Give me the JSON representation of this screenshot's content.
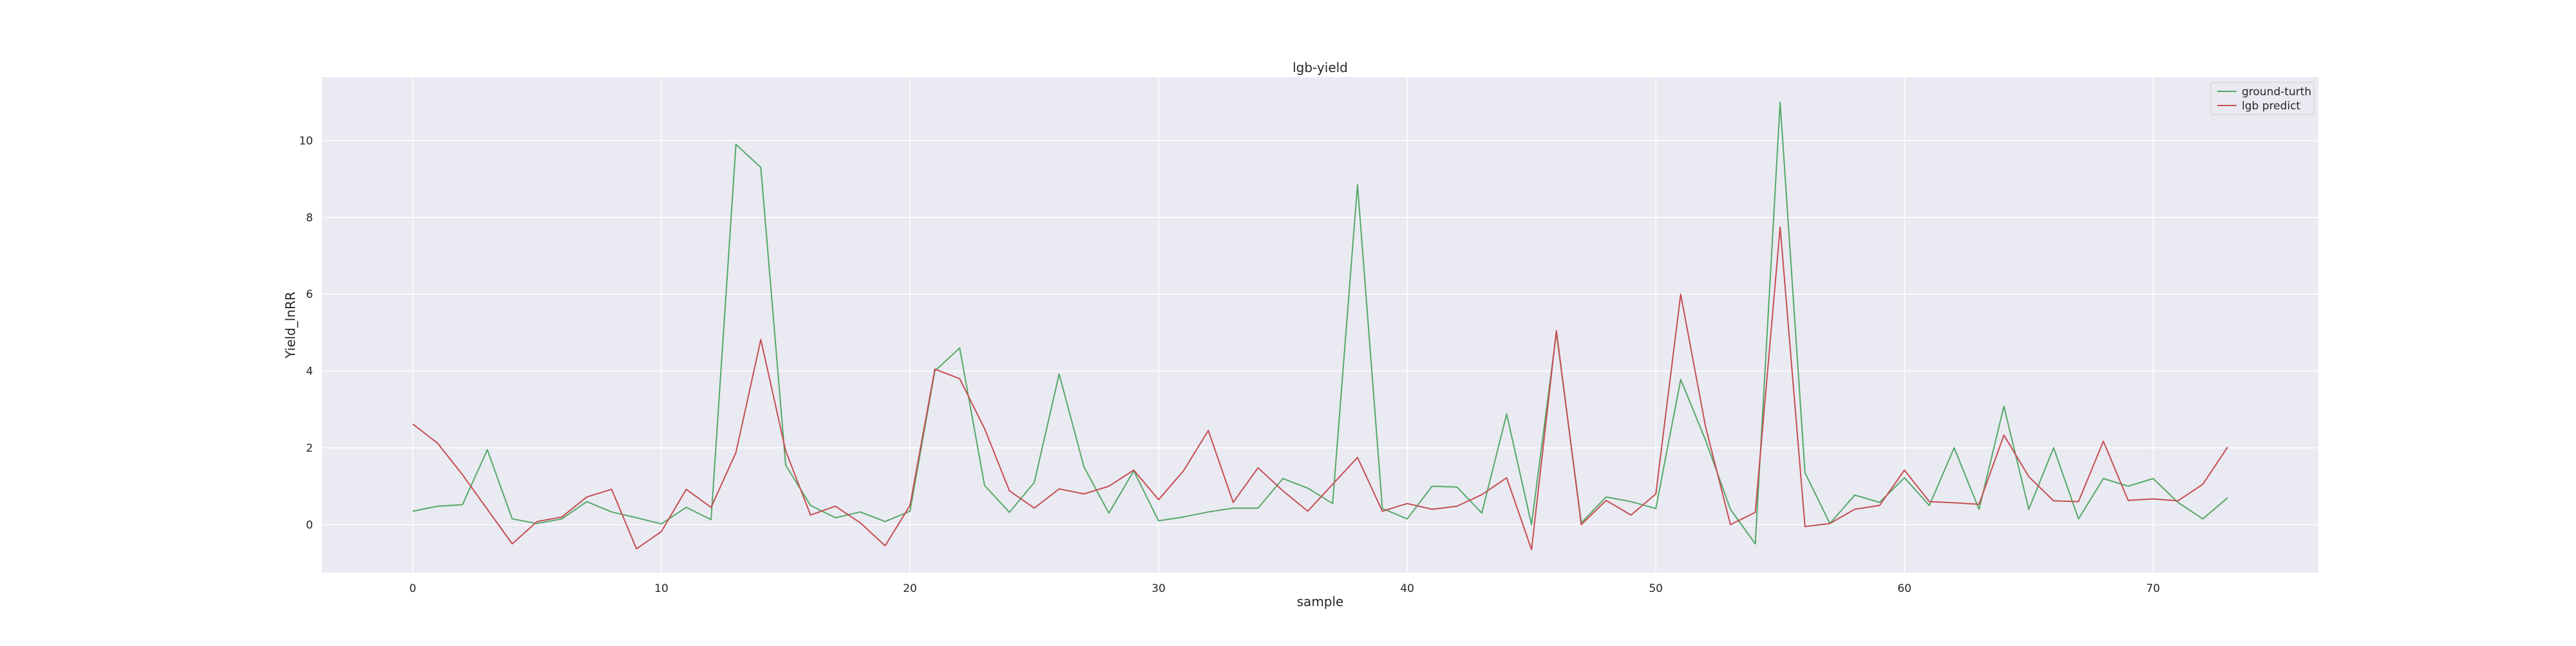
{
  "chart_data": {
    "type": "line",
    "title": "lgb-yield",
    "xlabel": "sample",
    "ylabel": "Yield_lnRR",
    "xlim": [
      -3.65,
      76.65
    ],
    "ylim": [
      -1.25,
      11.65
    ],
    "xticks": [
      0,
      10,
      20,
      30,
      40,
      50,
      60,
      70
    ],
    "yticks": [
      0,
      2,
      4,
      6,
      8,
      10
    ],
    "grid": true,
    "legend_position": "top-right",
    "background_color": "#eaeaf2",
    "grid_color": "#ffffff",
    "x": [
      0,
      1,
      2,
      3,
      4,
      5,
      6,
      7,
      8,
      9,
      10,
      11,
      12,
      13,
      14,
      15,
      16,
      17,
      18,
      19,
      20,
      21,
      22,
      23,
      24,
      25,
      26,
      27,
      28,
      29,
      30,
      31,
      32,
      33,
      34,
      35,
      36,
      37,
      38,
      39,
      40,
      41,
      42,
      43,
      44,
      45,
      46,
      47,
      48,
      49,
      50,
      51,
      52,
      53,
      54,
      55,
      56,
      57,
      58,
      59,
      60,
      61,
      62,
      63,
      64,
      65,
      66,
      67,
      68,
      69,
      70,
      71,
      72,
      73
    ],
    "series": [
      {
        "name": "ground-turth",
        "color": "#55a868",
        "values": [
          0.35,
          0.48,
          0.52,
          1.95,
          0.15,
          0.03,
          0.15,
          0.6,
          0.33,
          0.18,
          0.02,
          0.45,
          0.13,
          9.9,
          9.3,
          1.55,
          0.5,
          0.18,
          0.33,
          0.08,
          0.35,
          4.0,
          4.6,
          1.02,
          0.32,
          1.1,
          3.92,
          1.5,
          0.3,
          1.4,
          0.1,
          0.2,
          0.33,
          0.43,
          0.43,
          1.2,
          0.95,
          0.55,
          8.85,
          0.42,
          0.15,
          1.0,
          0.98,
          0.3,
          2.88,
          0.0,
          5.0,
          0.05,
          0.72,
          0.6,
          0.42,
          3.78,
          2.2,
          0.4,
          -0.5,
          11.0,
          1.35,
          0.03,
          0.77,
          0.58,
          1.22,
          0.5,
          2.0,
          0.4,
          3.08,
          0.4,
          2.0,
          0.15,
          1.2,
          1.0,
          1.2,
          0.58,
          0.15,
          0.7
        ]
      },
      {
        "name": "lgb predict",
        "color": "#c44e52",
        "values": [
          2.62,
          2.12,
          1.3,
          0.4,
          -0.5,
          0.08,
          0.2,
          0.72,
          0.92,
          -0.63,
          -0.18,
          0.92,
          0.45,
          1.88,
          4.82,
          1.92,
          0.25,
          0.48,
          0.05,
          -0.55,
          0.5,
          4.05,
          3.8,
          2.5,
          0.88,
          0.43,
          0.93,
          0.8,
          1.0,
          1.42,
          0.65,
          1.4,
          2.45,
          0.58,
          1.48,
          0.88,
          0.35,
          1.05,
          1.75,
          0.35,
          0.55,
          0.4,
          0.48,
          0.78,
          1.22,
          -0.65,
          5.05,
          0.0,
          0.63,
          0.25,
          0.8,
          6.0,
          2.55,
          0.0,
          0.32,
          7.75,
          -0.05,
          0.03,
          0.4,
          0.5,
          1.42,
          0.6,
          0.57,
          0.53,
          2.33,
          1.25,
          0.62,
          0.6,
          2.17,
          0.63,
          0.67,
          0.62,
          1.05,
          2.02
        ]
      }
    ]
  }
}
